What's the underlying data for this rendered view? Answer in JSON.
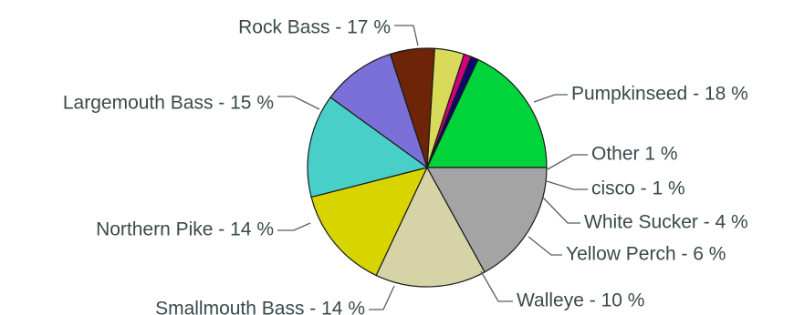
{
  "chart_data": {
    "type": "pie",
    "title": "",
    "slices": [
      {
        "label": "Pumpkinseed - 18 %",
        "name": "Pumpkinseed",
        "value": 18,
        "color": "#00d43a"
      },
      {
        "label": "Other 1 %",
        "name": "Other",
        "value": 1,
        "color": "#0a0a6e"
      },
      {
        "label": "cisco - 1 %",
        "name": "cisco",
        "value": 1,
        "color": "#d0007a"
      },
      {
        "label": "White Sucker - 4 %",
        "name": "White Sucker",
        "value": 4,
        "color": "#dada5a"
      },
      {
        "label": "Yellow Perch - 6 %",
        "name": "Yellow Perch",
        "value": 6,
        "color": "#6e2406"
      },
      {
        "label": "Walleye - 10 %",
        "name": "Walleye",
        "value": 10,
        "color": "#7a70d8"
      },
      {
        "label": "Smallmouth Bass - 14 %",
        "name": "Smallmouth Bass",
        "value": 14,
        "color": "#48d0c8"
      },
      {
        "label": "Northern Pike - 14 %",
        "name": "Northern Pike",
        "value": 14,
        "color": "#d8d400"
      },
      {
        "label": "Largemouth Bass - 15 %",
        "name": "Largemouth Bass",
        "value": 15,
        "color": "#d6d4a6"
      },
      {
        "label": "Rock Bass - 17 %",
        "name": "Rock Bass",
        "value": 17,
        "color": "#a4a4a4"
      }
    ]
  }
}
